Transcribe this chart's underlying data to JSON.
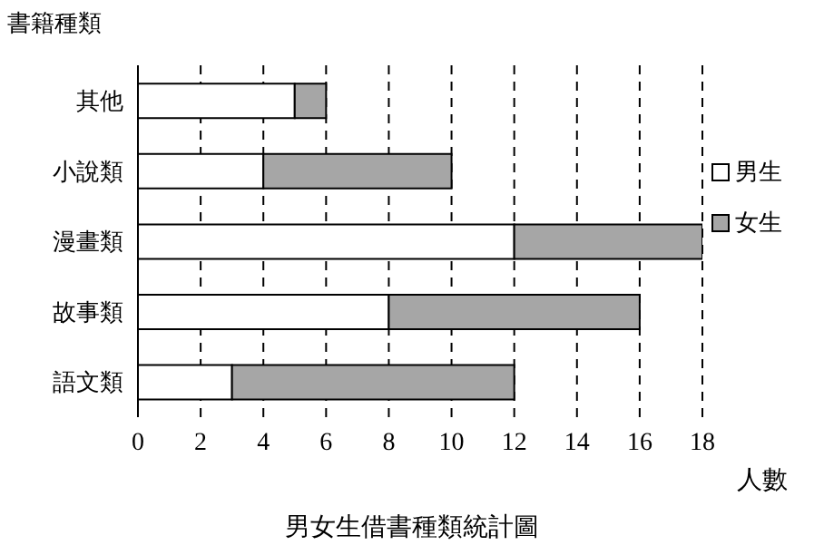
{
  "chart_data": {
    "type": "bar",
    "orientation": "horizontal",
    "stacked": true,
    "title": "男女生借書種類統計圖",
    "xlabel": "人數",
    "ylabel": "書籍種類",
    "categories": [
      "其他",
      "小說類",
      "漫畫類",
      "故事類",
      "語文類"
    ],
    "series": [
      {
        "name": "男生",
        "color": "#ffffff",
        "values": [
          5,
          4,
          12,
          8,
          3
        ]
      },
      {
        "name": "女生",
        "color": "#a6a6a6",
        "values": [
          1,
          6,
          6,
          8,
          9
        ]
      }
    ],
    "xlim": [
      0,
      18
    ],
    "xticks": [
      0,
      2,
      4,
      6,
      8,
      10,
      12,
      14,
      16,
      18
    ],
    "grid": "x",
    "legend": "right"
  }
}
